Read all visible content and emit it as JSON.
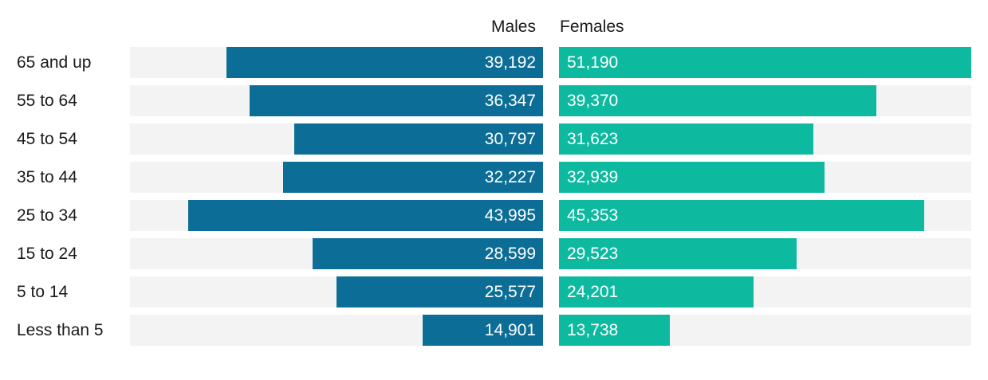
{
  "header": {
    "males_label": "Males",
    "females_label": "Females"
  },
  "chart_data": {
    "type": "bar",
    "subtype": "population-pyramid",
    "title": "",
    "categories": [
      "65 and up",
      "55 to 64",
      "45 to 54",
      "35 to 44",
      "25 to 34",
      "15 to 24",
      "5 to 14",
      "Less than 5"
    ],
    "series": [
      {
        "name": "Males",
        "color": "#0c6e96",
        "values": [
          39192,
          36347,
          30797,
          32227,
          43995,
          28599,
          25577,
          14901
        ],
        "labels": [
          "39,192",
          "36,347",
          "30,797",
          "32,227",
          "43,995",
          "28,599",
          "25,577",
          "14,901"
        ]
      },
      {
        "name": "Females",
        "color": "#0dbaa0",
        "values": [
          51190,
          39370,
          31623,
          32939,
          45353,
          29523,
          24201,
          13738
        ],
        "labels": [
          "51,190",
          "39,370",
          "31,623",
          "32,939",
          "45,353",
          "29,523",
          "24,201",
          "13,738"
        ]
      }
    ],
    "xmax": 51190,
    "grid": false,
    "legend_position": "top",
    "value_labels": "inside-bar",
    "track_color": "#f3f3f3"
  },
  "colors": {
    "male": "#0c6e96",
    "female": "#0dbaa0",
    "track": "#f3f3f3",
    "text": "#1a1a1a",
    "bar_text": "#ffffff",
    "background": "#ffffff"
  }
}
